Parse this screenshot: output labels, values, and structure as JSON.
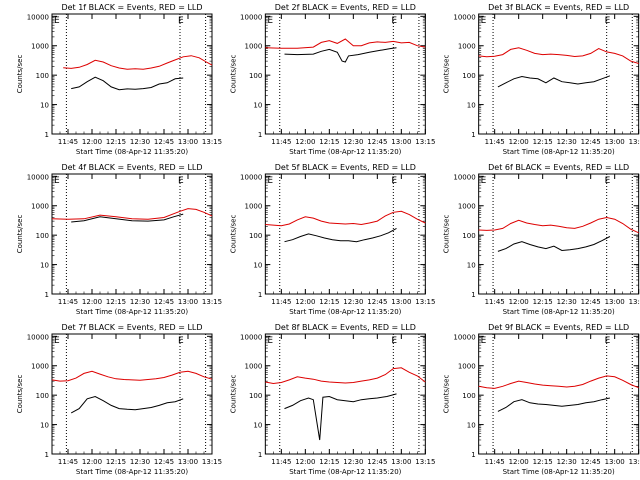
{
  "window": {
    "type": "grid-of-plots",
    "rows": 3,
    "cols": 3
  },
  "colors": {
    "events": "#000000",
    "lld": "#dd0000",
    "axes": "#000000",
    "background": "#ffffff"
  },
  "shared": {
    "xlabel": "Start Time (08-Apr-12 11:35:20)",
    "ylabel": "Counts/sec",
    "x_tick_labels": [
      "11:45",
      "12:00",
      "12:15",
      "12:30",
      "12:45",
      "13:00",
      "13:15"
    ],
    "x_tick_minutes": [
      10,
      25,
      40,
      55,
      70,
      85,
      100
    ],
    "x_range_minutes": [
      0,
      100
    ],
    "y_tick_labels": [
      "1",
      "10",
      "100",
      "1000",
      "10000"
    ],
    "y_scale": "log",
    "y_range": [
      1,
      12000
    ],
    "dotted_markers_minutes": [
      9,
      80,
      96
    ],
    "corner_marks": [
      "E",
      "E"
    ]
  },
  "chart_data": [
    {
      "type": "line",
      "title": "Det 1f BLACK = Events, RED = LLD",
      "x": [
        7,
        12,
        17,
        22,
        27,
        32,
        37,
        42,
        47,
        52,
        57,
        62,
        67,
        72,
        77,
        82,
        87,
        92,
        97,
        100
      ],
      "series": [
        {
          "color": "#dd0000",
          "values": [
            180,
            170,
            185,
            230,
            320,
            280,
            210,
            175,
            160,
            165,
            160,
            175,
            200,
            260,
            330,
            420,
            460,
            390,
            270,
            220
          ]
        },
        {
          "color": "#000000",
          "x_start": 12,
          "x_end": 82,
          "values_by_x": [
            [
              12,
              35
            ],
            [
              17,
              40
            ],
            [
              22,
              60
            ],
            [
              27,
              85
            ],
            [
              32,
              65
            ],
            [
              37,
              40
            ],
            [
              42,
              32
            ],
            [
              47,
              34
            ],
            [
              52,
              33
            ],
            [
              57,
              35
            ],
            [
              62,
              38
            ],
            [
              67,
              50
            ],
            [
              72,
              55
            ],
            [
              77,
              75
            ],
            [
              82,
              80
            ]
          ]
        }
      ]
    },
    {
      "type": "line",
      "title": "Det 2f BLACK = Events, RED = LLD",
      "x": [
        0,
        10,
        20,
        30,
        35,
        40,
        45,
        50,
        55,
        60,
        65,
        70,
        75,
        80,
        85,
        90,
        95,
        100
      ],
      "series": [
        {
          "color": "#dd0000",
          "values": [
            850,
            820,
            820,
            900,
            1300,
            1500,
            1200,
            1700,
            1000,
            1000,
            1250,
            1350,
            1300,
            1400,
            1250,
            1300,
            1000,
            900
          ]
        },
        {
          "color": "#000000",
          "x_start": 12,
          "x_end": 82,
          "values_by_x": [
            [
              12,
              520
            ],
            [
              20,
              500
            ],
            [
              30,
              520
            ],
            [
              35,
              650
            ],
            [
              40,
              750
            ],
            [
              45,
              600
            ],
            [
              48,
              300
            ],
            [
              50,
              280
            ],
            [
              52,
              450
            ],
            [
              58,
              500
            ],
            [
              65,
              600
            ],
            [
              72,
              700
            ],
            [
              78,
              800
            ],
            [
              82,
              850
            ]
          ]
        }
      ]
    },
    {
      "type": "line",
      "title": "Det 3f BLACK = Events, RED = LLD",
      "x": [
        0,
        5,
        10,
        15,
        20,
        25,
        30,
        35,
        40,
        45,
        50,
        55,
        60,
        65,
        70,
        75,
        80,
        85,
        90,
        95,
        100
      ],
      "series": [
        {
          "color": "#dd0000",
          "values": [
            450,
            420,
            440,
            500,
            750,
            850,
            700,
            550,
            500,
            520,
            500,
            470,
            430,
            450,
            550,
            800,
            620,
            550,
            450,
            300,
            250
          ]
        },
        {
          "color": "#000000",
          "x_start": 12,
          "x_end": 82,
          "values_by_x": [
            [
              12,
              40
            ],
            [
              17,
              55
            ],
            [
              22,
              75
            ],
            [
              27,
              90
            ],
            [
              32,
              80
            ],
            [
              37,
              75
            ],
            [
              42,
              55
            ],
            [
              47,
              80
            ],
            [
              52,
              60
            ],
            [
              57,
              55
            ],
            [
              62,
              50
            ],
            [
              67,
              55
            ],
            [
              72,
              60
            ],
            [
              77,
              75
            ],
            [
              82,
              95
            ]
          ]
        }
      ]
    },
    {
      "type": "line",
      "title": "Det 4f BLACK = Events, RED = LLD",
      "x": [
        0,
        10,
        20,
        30,
        40,
        50,
        60,
        70,
        80,
        85,
        90,
        95,
        100
      ],
      "series": [
        {
          "color": "#dd0000",
          "values": [
            360,
            350,
            360,
            480,
            420,
            360,
            350,
            400,
            650,
            800,
            750,
            600,
            450
          ]
        },
        {
          "color": "#000000",
          "x_start": 12,
          "x_end": 82,
          "values_by_x": [
            [
              12,
              280
            ],
            [
              20,
              310
            ],
            [
              30,
              420
            ],
            [
              40,
              360
            ],
            [
              50,
              310
            ],
            [
              60,
              300
            ],
            [
              70,
              330
            ],
            [
              76,
              420
            ],
            [
              82,
              520
            ]
          ]
        }
      ]
    },
    {
      "type": "line",
      "title": "Det 5f BLACK = Events, RED = LLD",
      "x": [
        0,
        5,
        10,
        15,
        20,
        25,
        30,
        35,
        40,
        45,
        50,
        55,
        60,
        65,
        70,
        75,
        80,
        85,
        90,
        95,
        100
      ],
      "series": [
        {
          "color": "#dd0000",
          "values": [
            230,
            220,
            210,
            240,
            330,
            420,
            380,
            300,
            260,
            250,
            240,
            250,
            230,
            260,
            300,
            450,
            600,
            650,
            500,
            350,
            260
          ]
        },
        {
          "color": "#000000",
          "x_start": 12,
          "x_end": 82,
          "values_by_x": [
            [
              12,
              60
            ],
            [
              17,
              70
            ],
            [
              22,
              90
            ],
            [
              27,
              110
            ],
            [
              32,
              95
            ],
            [
              37,
              80
            ],
            [
              42,
              70
            ],
            [
              47,
              65
            ],
            [
              52,
              65
            ],
            [
              57,
              60
            ],
            [
              62,
              70
            ],
            [
              67,
              80
            ],
            [
              72,
              95
            ],
            [
              77,
              120
            ],
            [
              82,
              170
            ]
          ]
        }
      ]
    },
    {
      "type": "line",
      "title": "Det 6f BLACK = Events, RED = LLD",
      "x": [
        0,
        5,
        10,
        15,
        20,
        25,
        30,
        35,
        40,
        45,
        50,
        55,
        60,
        65,
        70,
        75,
        80,
        85,
        90,
        95,
        100
      ],
      "series": [
        {
          "color": "#dd0000",
          "values": [
            150,
            145,
            150,
            170,
            250,
            320,
            260,
            230,
            210,
            220,
            200,
            180,
            170,
            200,
            260,
            350,
            400,
            350,
            250,
            160,
            120
          ]
        },
        {
          "color": "#000000",
          "x_start": 12,
          "x_end": 82,
          "values_by_x": [
            [
              12,
              28
            ],
            [
              17,
              35
            ],
            [
              22,
              50
            ],
            [
              27,
              60
            ],
            [
              32,
              48
            ],
            [
              37,
              40
            ],
            [
              42,
              35
            ],
            [
              47,
              42
            ],
            [
              52,
              30
            ],
            [
              57,
              32
            ],
            [
              62,
              35
            ],
            [
              67,
              40
            ],
            [
              72,
              48
            ],
            [
              77,
              65
            ],
            [
              82,
              90
            ]
          ]
        }
      ]
    },
    {
      "type": "line",
      "title": "Det 7f BLACK = Events, RED = LLD",
      "x": [
        0,
        5,
        10,
        15,
        20,
        25,
        30,
        35,
        40,
        45,
        50,
        55,
        60,
        65,
        70,
        75,
        80,
        85,
        90,
        95,
        100
      ],
      "series": [
        {
          "color": "#dd0000",
          "values": [
            330,
            300,
            310,
            380,
            550,
            650,
            520,
            420,
            360,
            340,
            330,
            320,
            340,
            360,
            400,
            480,
            600,
            650,
            550,
            420,
            350
          ]
        },
        {
          "color": "#000000",
          "x_start": 12,
          "x_end": 82,
          "values_by_x": [
            [
              12,
              25
            ],
            [
              17,
              35
            ],
            [
              22,
              75
            ],
            [
              27,
              90
            ],
            [
              32,
              65
            ],
            [
              37,
              45
            ],
            [
              42,
              35
            ],
            [
              47,
              33
            ],
            [
              52,
              32
            ],
            [
              57,
              35
            ],
            [
              62,
              38
            ],
            [
              67,
              45
            ],
            [
              72,
              55
            ],
            [
              77,
              60
            ],
            [
              82,
              75
            ]
          ]
        }
      ]
    },
    {
      "type": "line",
      "title": "Det 8f BLACK = Events, RED = LLD",
      "x": [
        0,
        5,
        10,
        15,
        20,
        25,
        30,
        35,
        40,
        45,
        50,
        55,
        60,
        65,
        70,
        75,
        80,
        85,
        90,
        95,
        100
      ],
      "series": [
        {
          "color": "#dd0000",
          "values": [
            280,
            250,
            270,
            330,
            420,
            380,
            350,
            300,
            280,
            270,
            260,
            270,
            300,
            330,
            380,
            500,
            800,
            850,
            600,
            450,
            280
          ]
        },
        {
          "color": "#000000",
          "x_start": 12,
          "x_end": 82,
          "values_by_x": [
            [
              12,
              35
            ],
            [
              17,
              45
            ],
            [
              22,
              65
            ],
            [
              27,
              80
            ],
            [
              30,
              70
            ],
            [
              34,
              3
            ],
            [
              36,
              85
            ],
            [
              40,
              90
            ],
            [
              45,
              70
            ],
            [
              50,
              65
            ],
            [
              55,
              60
            ],
            [
              60,
              70
            ],
            [
              65,
              75
            ],
            [
              70,
              80
            ],
            [
              76,
              90
            ],
            [
              82,
              110
            ]
          ]
        }
      ]
    },
    {
      "type": "line",
      "title": "Det 9f BLACK = Events, RED = LLD",
      "x": [
        0,
        5,
        10,
        15,
        20,
        25,
        30,
        35,
        40,
        45,
        50,
        55,
        60,
        65,
        70,
        75,
        80,
        85,
        90,
        95,
        100
      ],
      "series": [
        {
          "color": "#dd0000",
          "values": [
            200,
            180,
            170,
            200,
            250,
            300,
            270,
            240,
            220,
            210,
            200,
            190,
            200,
            230,
            300,
            380,
            450,
            420,
            320,
            230,
            180
          ]
        },
        {
          "color": "#000000",
          "x_start": 12,
          "x_end": 82,
          "values_by_x": [
            [
              12,
              28
            ],
            [
              17,
              38
            ],
            [
              22,
              60
            ],
            [
              27,
              70
            ],
            [
              32,
              55
            ],
            [
              37,
              50
            ],
            [
              42,
              48
            ],
            [
              47,
              45
            ],
            [
              52,
              42
            ],
            [
              57,
              45
            ],
            [
              62,
              48
            ],
            [
              67,
              55
            ],
            [
              72,
              60
            ],
            [
              77,
              70
            ],
            [
              82,
              80
            ]
          ]
        }
      ]
    }
  ]
}
